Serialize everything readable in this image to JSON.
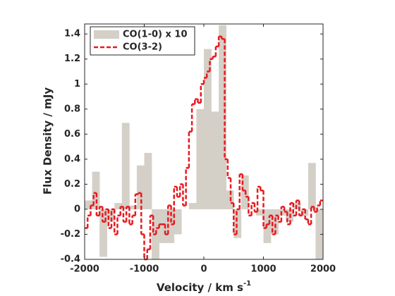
{
  "chart_data": {
    "type": "step",
    "xlabel": "Velocity / km s",
    "xlabel_sup": "-1",
    "ylabel": "Flux Density / mJy",
    "xlim": [
      -2000,
      2000
    ],
    "xticks": [
      -2000,
      -1000,
      0,
      1000,
      2000
    ],
    "ylim": [
      -0.4,
      1.48
    ],
    "yticks": [
      -0.4,
      -0.2,
      0,
      0.2,
      0.4,
      0.6,
      0.8,
      1,
      1.2,
      1.4
    ],
    "legend": "upper left",
    "series": [
      {
        "name": "CO(1-0) x 10",
        "color": "#d4d0c8",
        "style": "filled",
        "bins": [
          -2000,
          -1875,
          -1750,
          -1625,
          -1500,
          -1375,
          -1250,
          -1125,
          -1000,
          -875,
          -750,
          -625,
          -500,
          -375,
          -250,
          -125,
          0,
          125,
          250,
          375,
          500,
          625,
          750,
          875,
          1000,
          1125,
          1250,
          1375,
          1500,
          1625,
          1750,
          1875,
          2000
        ],
        "values": [
          0.07,
          0.3,
          -0.38,
          -0.1,
          0.05,
          0.69,
          0.03,
          0.35,
          0.45,
          -0.4,
          -0.27,
          -0.27,
          -0.2,
          0.0,
          0.05,
          0.8,
          1.28,
          0.78,
          1.47,
          0.15,
          -0.23,
          0.27,
          0.0,
          -0.05,
          -0.27,
          -0.2,
          -0.05,
          -0.1,
          0.05,
          -0.05,
          0.37,
          -0.4
        ]
      },
      {
        "name": "CO(3-2)",
        "color": "#e8191f",
        "style": "dashed",
        "bins": [
          -2000,
          -1950,
          -1900,
          -1850,
          -1800,
          -1750,
          -1700,
          -1650,
          -1600,
          -1550,
          -1500,
          -1450,
          -1400,
          -1350,
          -1300,
          -1250,
          -1200,
          -1150,
          -1100,
          -1050,
          -1000,
          -950,
          -900,
          -850,
          -800,
          -750,
          -700,
          -650,
          -600,
          -550,
          -500,
          -450,
          -400,
          -350,
          -300,
          -250,
          -200,
          -150,
          -100,
          -50,
          0,
          50,
          100,
          150,
          200,
          250,
          300,
          350,
          400,
          450,
          500,
          550,
          600,
          650,
          700,
          750,
          800,
          850,
          900,
          950,
          1000,
          1050,
          1100,
          1150,
          1200,
          1250,
          1300,
          1350,
          1400,
          1450,
          1500,
          1550,
          1600,
          1650,
          1700,
          1750,
          1800,
          1850,
          1900,
          1950,
          2000
        ],
        "values": [
          -0.15,
          -0.05,
          0.03,
          0.13,
          -0.05,
          0.02,
          -0.1,
          0.0,
          -0.15,
          0.0,
          -0.2,
          -0.05,
          0.02,
          -0.1,
          0.02,
          -0.12,
          -0.05,
          0.12,
          0.13,
          -0.2,
          -0.4,
          -0.32,
          -0.05,
          -0.2,
          -0.15,
          -0.12,
          -0.12,
          -0.2,
          0.03,
          -0.12,
          0.18,
          0.1,
          0.2,
          0.03,
          0.33,
          0.62,
          0.84,
          0.88,
          0.85,
          1.0,
          1.05,
          1.1,
          1.2,
          1.22,
          1.3,
          1.38,
          1.36,
          0.4,
          0.25,
          0.05,
          -0.2,
          0.0,
          0.28,
          0.15,
          0.1,
          -0.05,
          0.05,
          -0.02,
          0.18,
          0.15,
          -0.15,
          -0.12,
          -0.05,
          -0.2,
          -0.05,
          -0.1,
          0.02,
          -0.02,
          -0.12,
          0.05,
          -0.05,
          0.07,
          -0.05,
          0.0,
          -0.08,
          -0.12,
          0.02,
          -0.02,
          0.03,
          0.07
        ]
      }
    ]
  }
}
